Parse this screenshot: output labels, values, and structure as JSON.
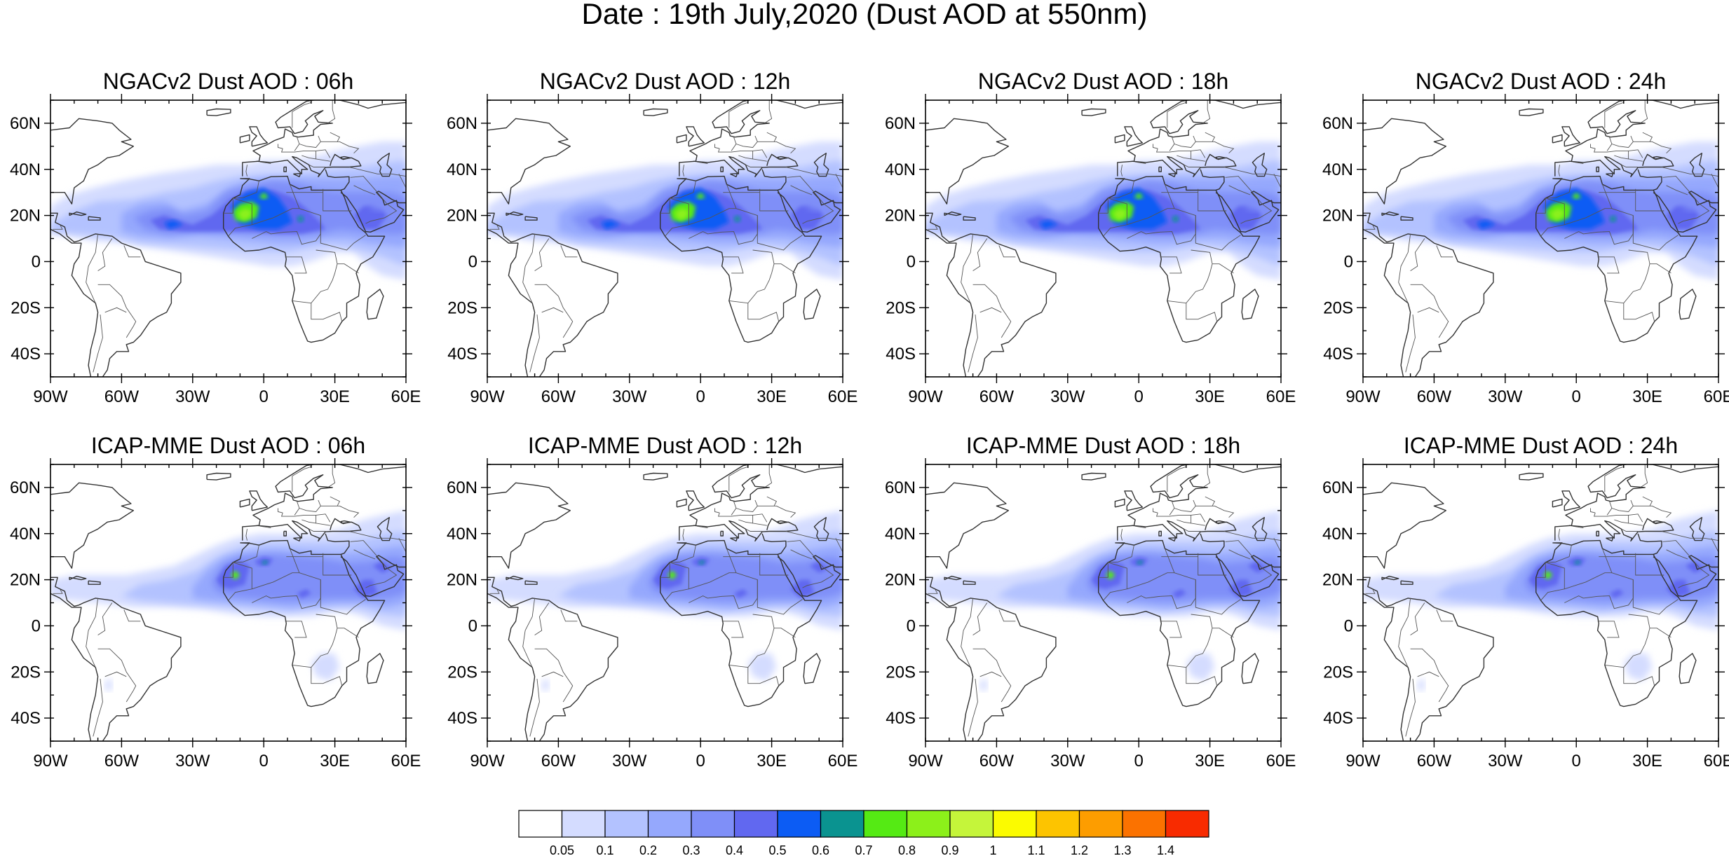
{
  "title": "Date : 19th July,2020 (Dust AOD at 550nm)",
  "axes": {
    "lon_range": [
      -90,
      60
    ],
    "lat_range": [
      -50,
      70
    ],
    "x_ticks": [
      {
        "value": -90,
        "label": "90W"
      },
      {
        "value": -60,
        "label": "60W"
      },
      {
        "value": -30,
        "label": "30W"
      },
      {
        "value": 0,
        "label": "0"
      },
      {
        "value": 30,
        "label": "30E"
      },
      {
        "value": 60,
        "label": "60E"
      }
    ],
    "y_ticks": [
      {
        "value": 60,
        "label": "60N"
      },
      {
        "value": 40,
        "label": "40N"
      },
      {
        "value": 20,
        "label": "20N"
      },
      {
        "value": 0,
        "label": "0"
      },
      {
        "value": -20,
        "label": "20S"
      },
      {
        "value": -40,
        "label": "40S"
      }
    ]
  },
  "panels": [
    {
      "title": "NGACv2 Dust AOD : 06h",
      "model": "NGACv2",
      "hour": 6
    },
    {
      "title": "NGACv2 Dust AOD : 12h",
      "model": "NGACv2",
      "hour": 12
    },
    {
      "title": "NGACv2 Dust AOD : 18h",
      "model": "NGACv2",
      "hour": 18
    },
    {
      "title": "NGACv2 Dust AOD : 24h",
      "model": "NGACv2",
      "hour": 24
    },
    {
      "title": "ICAP-MME Dust AOD : 06h",
      "model": "ICAP-MME",
      "hour": 6
    },
    {
      "title": "ICAP-MME Dust AOD : 12h",
      "model": "ICAP-MME",
      "hour": 12
    },
    {
      "title": "ICAP-MME Dust AOD : 18h",
      "model": "ICAP-MME",
      "hour": 18
    },
    {
      "title": "ICAP-MME Dust AOD : 24h",
      "model": "ICAP-MME",
      "hour": 24
    }
  ],
  "colorbar": {
    "labels": [
      "0.05",
      "0.1",
      "0.2",
      "0.3",
      "0.4",
      "0.5",
      "0.6",
      "0.7",
      "0.8",
      "0.9",
      "1",
      "1.1",
      "1.2",
      "1.3",
      "1.4"
    ],
    "colors": [
      "#ffffff",
      "#d4dcff",
      "#b3c2ff",
      "#95a8fd",
      "#7f8ff8",
      "#6168f0",
      "#0c5cf4",
      "#0a9390",
      "#55ea14",
      "#8cf01a",
      "#c5f53a",
      "#fbfb00",
      "#fdc400",
      "#fd9d00",
      "#fb7200",
      "#f82b00"
    ]
  }
}
